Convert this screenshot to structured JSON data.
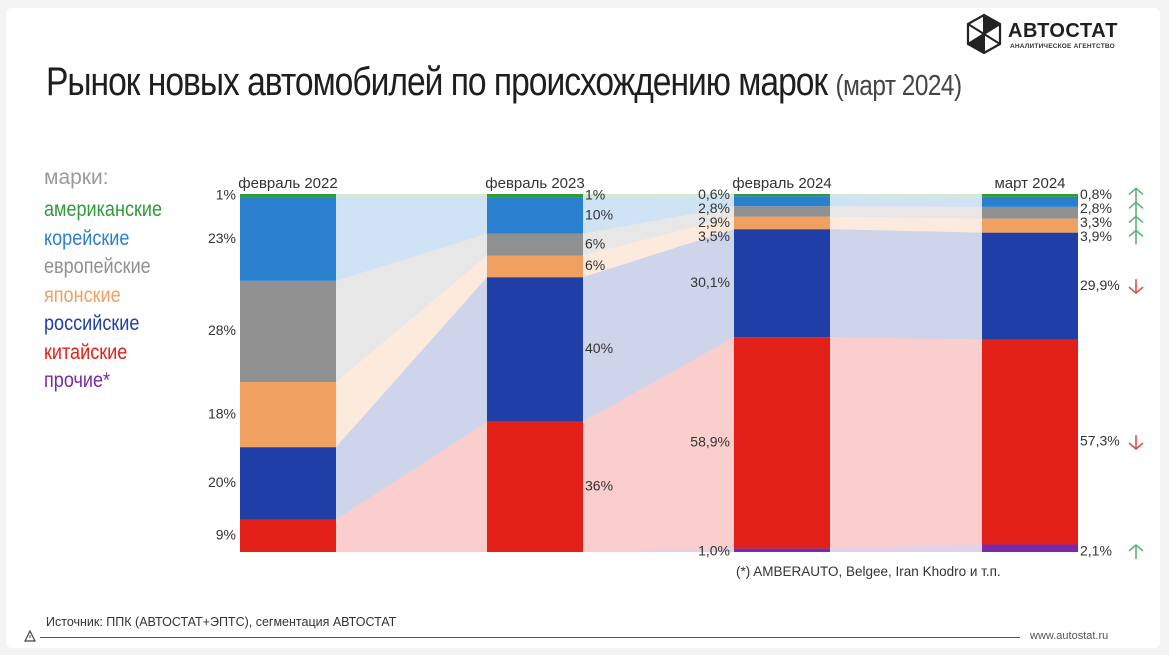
{
  "header": {
    "title": "Рынок новых автомобилей по происхождению марок",
    "subtitle": "(март 2024)"
  },
  "logo": {
    "name": "АВТОСТАТ",
    "tagline": "АНАЛИТИЧЕСКОЕ АГЕНТСТВО",
    "icon": "hexagon-logo-icon"
  },
  "legend": {
    "title": "марки:",
    "items": [
      {
        "label": "американские",
        "color": "#2e9a3a"
      },
      {
        "label": "корейские",
        "color": "#2a7fcf"
      },
      {
        "label": "европейские",
        "color": "#909090"
      },
      {
        "label": "японские",
        "color": "#f0a060"
      },
      {
        "label": "российские",
        "color": "#1f3fa6"
      },
      {
        "label": "китайские",
        "color": "#e32018"
      },
      {
        "label": "прочие*",
        "color": "#7a2aa8"
      }
    ]
  },
  "footnote": "(*) AMBERAUTO, Belgee, Iran Khodro и т.п.",
  "source": "Источник: ППК (АВТОСТАТ+ЭПТС), сегментация АВТОСТАТ",
  "url": "www.autostat.ru",
  "chart_data": {
    "type": "bar",
    "stacked": true,
    "percent_stacked": true,
    "categories": [
      "февраль 2022",
      "февраль 2023",
      "февраль 2024",
      "март 2024"
    ],
    "ylim": [
      0,
      100
    ],
    "series": [
      {
        "name": "китайские",
        "color": "#e32018",
        "values": [
          9,
          36,
          58.9,
          57.3
        ],
        "labels": [
          "9%",
          "36%",
          "58,9%",
          "57,3%"
        ]
      },
      {
        "name": "российские",
        "color": "#1f3fa6",
        "values": [
          20,
          40,
          30.1,
          29.9
        ],
        "labels": [
          "20%",
          "40%",
          "30,1%",
          "29,9%"
        ]
      },
      {
        "name": "японские",
        "color": "#f0a060",
        "values": [
          18,
          6,
          3.5,
          3.9
        ],
        "labels": [
          "18%",
          "6%",
          "3,5%",
          "3,9%"
        ]
      },
      {
        "name": "европейские",
        "color": "#909090",
        "values": [
          28,
          6,
          2.9,
          3.3
        ],
        "labels": [
          "28%",
          "6%",
          "2,9%",
          "3,3%"
        ]
      },
      {
        "name": "корейские",
        "color": "#2a7fcf",
        "values": [
          23,
          10,
          2.8,
          2.8
        ],
        "labels": [
          "23%",
          "10%",
          "2,8%",
          "2,8%"
        ]
      },
      {
        "name": "американские",
        "color": "#2e9a3a",
        "values": [
          1,
          1,
          0.6,
          0.8
        ],
        "labels": [
          "1%",
          "1%",
          "0,6%",
          "0,8%"
        ]
      },
      {
        "name": "прочие*",
        "color": "#7a2aa8",
        "values": [
          0,
          0,
          1.0,
          2.1
        ],
        "labels": [
          "",
          "",
          "1,0%",
          "2,1%"
        ]
      }
    ],
    "trend_arrows": [
      {
        "series": "прочие*",
        "direction": "up",
        "color": "#5bb378"
      },
      {
        "series": "китайские",
        "direction": "down",
        "color": "#e05050"
      },
      {
        "series": "российские",
        "direction": "down",
        "color": "#e05050"
      },
      {
        "series": "японские",
        "direction": "up",
        "color": "#5bb378"
      },
      {
        "series": "европейские",
        "direction": "up",
        "color": "#5bb378"
      },
      {
        "series": "корейские",
        "direction": "up",
        "color": "#5bb378"
      },
      {
        "series": "американские",
        "direction": "up",
        "color": "#5bb378"
      }
    ],
    "grid": false,
    "legend_position": "left"
  }
}
